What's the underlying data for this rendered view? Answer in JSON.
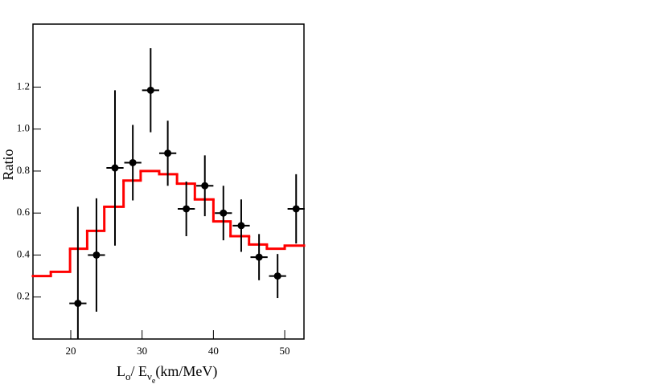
{
  "chart_data": {
    "type": "overlay",
    "ylabel": "Ratio",
    "xlabel": [
      {
        "text": "L",
        "level": 0
      },
      {
        "text": "o",
        "level": 1
      },
      {
        "text": "/ E",
        "level": 0
      },
      {
        "text": "ν",
        "level": 1
      },
      {
        "text": "e",
        "level": 2
      },
      {
        "text": "(km/MeV)",
        "level": 0
      }
    ],
    "xlim": [
      14.7,
      52.7
    ],
    "ylim": [
      0,
      1.5
    ],
    "xticks": [
      20,
      30,
      40,
      50
    ],
    "yticks": [
      0.2,
      0.4,
      0.6,
      0.8,
      {
        "value": 1,
        "label": "1.0"
      },
      1.2
    ],
    "series": [
      {
        "type": "step",
        "color": "#ff0000",
        "bins": [
          14.7,
          17.2,
          19.9,
          22.3,
          24.7,
          27.4,
          29.8,
          32.4,
          34.9,
          37.4,
          40.0,
          42.4,
          45.0,
          47.5,
          50.0,
          52.7
        ],
        "values": [
          0.3,
          0.32,
          0.43,
          0.515,
          0.63,
          0.755,
          0.8,
          0.785,
          0.74,
          0.665,
          0.56,
          0.49,
          0.45,
          0.43,
          0.445
        ]
      },
      {
        "type": "errorbar",
        "color": "#000000",
        "x": [
          21.0,
          23.6,
          26.2,
          28.7,
          31.2,
          33.6,
          36.2,
          38.8,
          41.4,
          43.9,
          46.4,
          49.0,
          51.6
        ],
        "values": [
          0.17,
          0.4,
          0.815,
          0.84,
          1.185,
          0.885,
          0.62,
          0.73,
          0.6,
          0.54,
          0.39,
          0.3,
          0.62
        ],
        "xerr": [
          1.2,
          1.2,
          1.2,
          1.2,
          1.2,
          1.2,
          1.2,
          1.2,
          1.2,
          1.2,
          1.2,
          1.2,
          1.2
        ],
        "yerr": [
          0.46,
          0.27,
          0.37,
          0.18,
          0.2,
          0.155,
          0.13,
          0.145,
          0.13,
          0.125,
          0.11,
          0.105,
          0.165
        ]
      }
    ]
  }
}
